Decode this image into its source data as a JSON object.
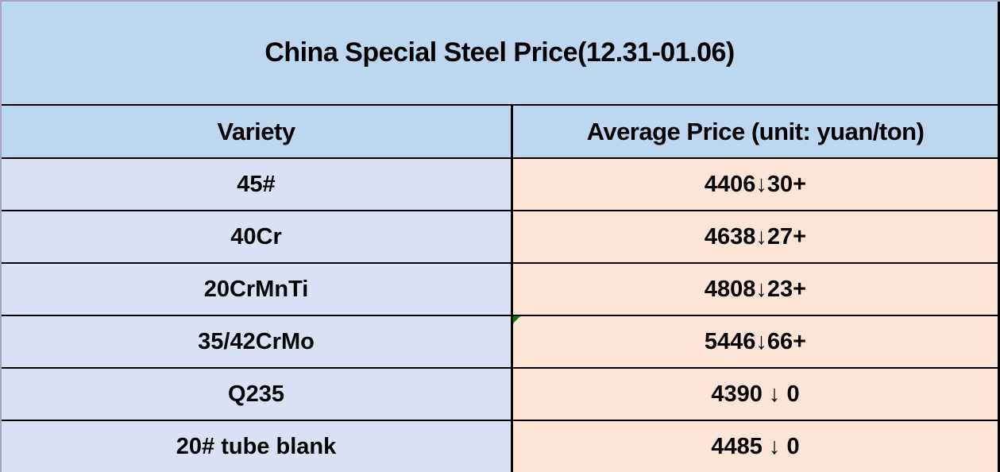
{
  "title": "China Special Steel Price(12.31-01.06)",
  "table": {
    "headers": {
      "variety": "Variety",
      "average_price": "Average Price (unit: yuan/ton)"
    },
    "rows": [
      {
        "variety": "45#",
        "price": "4406↓30+"
      },
      {
        "variety": "40Cr",
        "price": "4638↓27+"
      },
      {
        "variety": "20CrMnTi",
        "price": "4808↓23+"
      },
      {
        "variety": "35/42CrMo",
        "price": "5446↓66+",
        "flag": "error-flag"
      },
      {
        "variety": "Q235",
        "price": "4390 ↓ 0"
      },
      {
        "variety": "20# tube blank",
        "price": "4485 ↓ 0"
      }
    ]
  },
  "colors": {
    "title_background": "#BDD7EE",
    "header_background": "#BDD7EE",
    "variety_cell_background": "#D9E1F2",
    "price_cell_background": "#FCE4D6",
    "border": "#000000",
    "error_flag_green": "#008000"
  },
  "icons": {
    "down_arrow": "↓",
    "error_flag": "green corner triangle"
  }
}
